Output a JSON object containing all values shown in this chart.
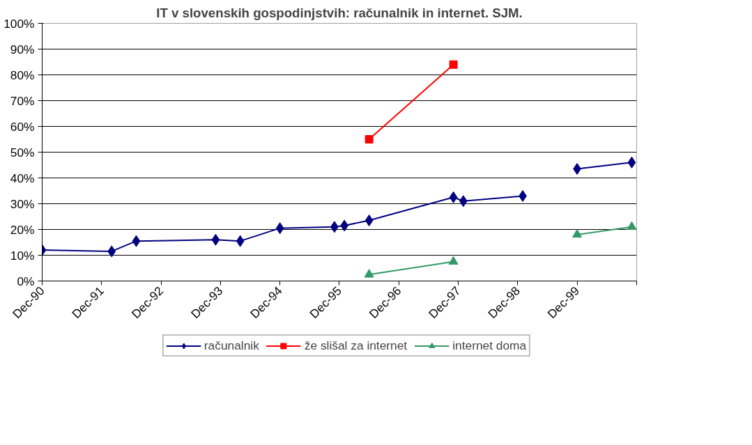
{
  "chart_data": {
    "type": "line",
    "title": "IT v slovenskih gospodinjstvih: računalnik in internet. SJM.",
    "xlim": [
      "1990-12",
      "2000-12"
    ],
    "xticks": [
      {
        "value": "1990-12",
        "label": "Dec-90"
      },
      {
        "value": "1991-12",
        "label": "Dec-91"
      },
      {
        "value": "1992-12",
        "label": "Dec-92"
      },
      {
        "value": "1993-12",
        "label": "Dec-93"
      },
      {
        "value": "1994-12",
        "label": "Dec-94"
      },
      {
        "value": "1995-12",
        "label": "Dec-95"
      },
      {
        "value": "1996-12",
        "label": "Dec-96"
      },
      {
        "value": "1997-12",
        "label": "Dec-97"
      },
      {
        "value": "1998-12",
        "label": "Dec-98"
      },
      {
        "value": "1999-12",
        "label": "Dec-99"
      },
      {
        "value": "2000-12",
        "label": null
      }
    ],
    "ylim": [
      0,
      100
    ],
    "yticks": [
      {
        "value": 0,
        "label": "0%"
      },
      {
        "value": 10,
        "label": "10%"
      },
      {
        "value": 20,
        "label": "20%"
      },
      {
        "value": 30,
        "label": "30%"
      },
      {
        "value": 40,
        "label": "40%"
      },
      {
        "value": 50,
        "label": "50%"
      },
      {
        "value": 60,
        "label": "60%"
      },
      {
        "value": 70,
        "label": "70%"
      },
      {
        "value": 80,
        "label": "80%"
      },
      {
        "value": 90,
        "label": "90%"
      },
      {
        "value": 100,
        "label": "100%"
      }
    ],
    "grid": "y",
    "legend": "bottom",
    "line_style": "solid",
    "series": [
      {
        "name": "računalnik",
        "color": "#000080",
        "marker": "diamond",
        "x": [
          "1990-12",
          "1992-02",
          "1992-07",
          "1993-11",
          "1994-04",
          "1994-12",
          "1995-11",
          "1996-01",
          "1996-06",
          "1997-11",
          "1998-01",
          "1999-01",
          "1999-06",
          "1999-12",
          "2000-11"
        ],
        "values": [
          12,
          11.5,
          15.5,
          16,
          15.5,
          20.5,
          21,
          21.5,
          23.5,
          32.5,
          31,
          33,
          null,
          43.5,
          46
        ]
      },
      {
        "name": "že slišal za internet",
        "color": "#ff0000",
        "marker": "square",
        "x": [
          "1996-06",
          "1997-11"
        ],
        "values": [
          55,
          84
        ]
      },
      {
        "name": "internet doma",
        "color": "#339966",
        "marker": "triangle",
        "x": [
          "1996-06",
          "1997-11",
          "1998-12",
          "1999-12",
          "2000-11"
        ],
        "values": [
          2.5,
          7.5,
          null,
          18,
          21
        ]
      }
    ]
  }
}
